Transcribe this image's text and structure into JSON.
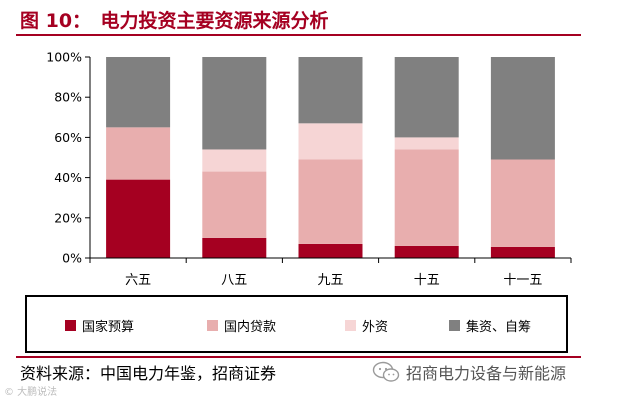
{
  "header": {
    "figure_title": "图 10：　电力投资主要资源来源分析"
  },
  "chart_data": {
    "type": "bar",
    "stacked": true,
    "categories": [
      "六五",
      "八五",
      "九五",
      "十五",
      "十一五"
    ],
    "series": [
      {
        "name": "国家预算",
        "color": "#a50021",
        "values": [
          39,
          10,
          7,
          6,
          5.5
        ]
      },
      {
        "name": "国内贷款",
        "color": "#e8aeae",
        "values": [
          26,
          33,
          42,
          48,
          43.5
        ]
      },
      {
        "name": "外资",
        "color": "#f6d5d5",
        "values": [
          0,
          11,
          18,
          6,
          0
        ]
      },
      {
        "name": "集资、自筹",
        "color": "#808080",
        "values": [
          35,
          46,
          33,
          40,
          51
        ]
      }
    ],
    "yaxis": {
      "min": 0,
      "max": 100,
      "ticks": [
        "0%",
        "20%",
        "40%",
        "60%",
        "80%",
        "100%"
      ]
    },
    "grid": false,
    "legend_position": "bottom"
  },
  "footer": {
    "source": "资料来源：中国电力年鉴，招商证券",
    "brand": "招商电力设备与新能源",
    "watermark": "© 大鹏说法"
  },
  "colors": {
    "accent": "#a50021",
    "plot_background": "#ffffff",
    "gap": "#ffffff"
  }
}
